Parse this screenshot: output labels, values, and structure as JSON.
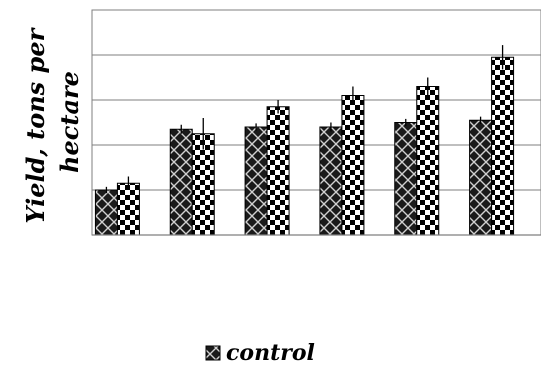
{
  "chart_data": {
    "type": "bar",
    "ylabel": "Yield, tons per hectare",
    "ylabel_lines": [
      "Yield, tons per",
      "hectare"
    ],
    "categories": [
      "",
      "",
      "",
      "",
      "",
      ""
    ],
    "grid": true,
    "ylim": [
      0,
      5
    ],
    "legend": {
      "placement": "bottom"
    },
    "series": [
      {
        "name": "control",
        "values": [
          1.0,
          2.35,
          2.4,
          2.4,
          2.5,
          2.55
        ],
        "errors": [
          0.07,
          0.1,
          0.08,
          0.1,
          0.08,
          0.08
        ],
        "pattern": "crosshatch"
      },
      {
        "name": "",
        "values": [
          1.15,
          2.25,
          2.85,
          3.1,
          3.3,
          3.95
        ],
        "errors": [
          0.15,
          0.35,
          0.15,
          0.2,
          0.2,
          0.27
        ],
        "pattern": "checker"
      }
    ]
  }
}
